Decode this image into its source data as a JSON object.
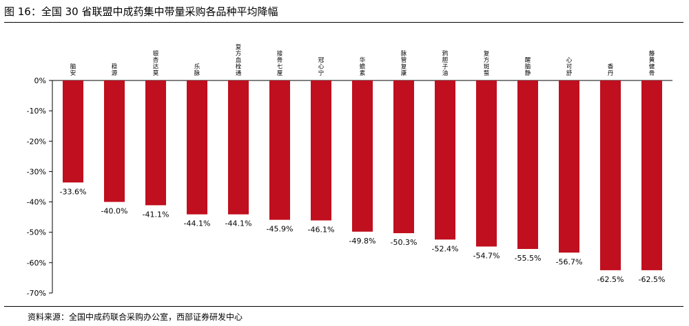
{
  "figure": {
    "title": "图 16：全国 30 省联盟中成药集中带量采购各品种平均降幅",
    "source": "资料来源：全国中成药联合采购办公室，西部证券研发中心"
  },
  "colors": {
    "bar": "#C00F1E",
    "axis": "#000000",
    "text": "#000000"
  },
  "chart_data": {
    "type": "bar",
    "title": "",
    "xlabel": "",
    "ylabel": "",
    "ylim": [
      -70,
      0
    ],
    "y_tick_labels": [
      "0%",
      "-10%",
      "-20%",
      "-30%",
      "-40%",
      "-50%",
      "-60%",
      "-70%"
    ],
    "y_ticks": [
      0,
      -10,
      -20,
      -30,
      -40,
      -50,
      -60,
      -70
    ],
    "grid": false,
    "legend": "none",
    "categories": [
      "脑安",
      "稳源",
      "银杏达莫",
      "乐脉",
      "复方血栓通",
      "接骨七厘",
      "冠心宁",
      "华蟾素",
      "脉管复康",
      "鸦胆子油",
      "复方斑蝥",
      "醒脑静",
      "心可舒",
      "香丹",
      "藤黄健骨"
    ],
    "values": [
      -33.6,
      -40.0,
      -41.1,
      -44.1,
      -44.1,
      -45.9,
      -46.1,
      -49.8,
      -50.3,
      -52.4,
      -54.7,
      -55.5,
      -56.7,
      -62.5,
      -62.5
    ],
    "value_labels": [
      "-33.6%",
      "-40.0%",
      "-41.1%",
      "-44.1%",
      "-44.1%",
      "-45.9%",
      "-46.1%",
      "-49.8%",
      "-50.3%",
      "-52.4%",
      "-54.7%",
      "-55.5%",
      "-56.7%",
      "-62.5%",
      "-62.5%"
    ]
  }
}
